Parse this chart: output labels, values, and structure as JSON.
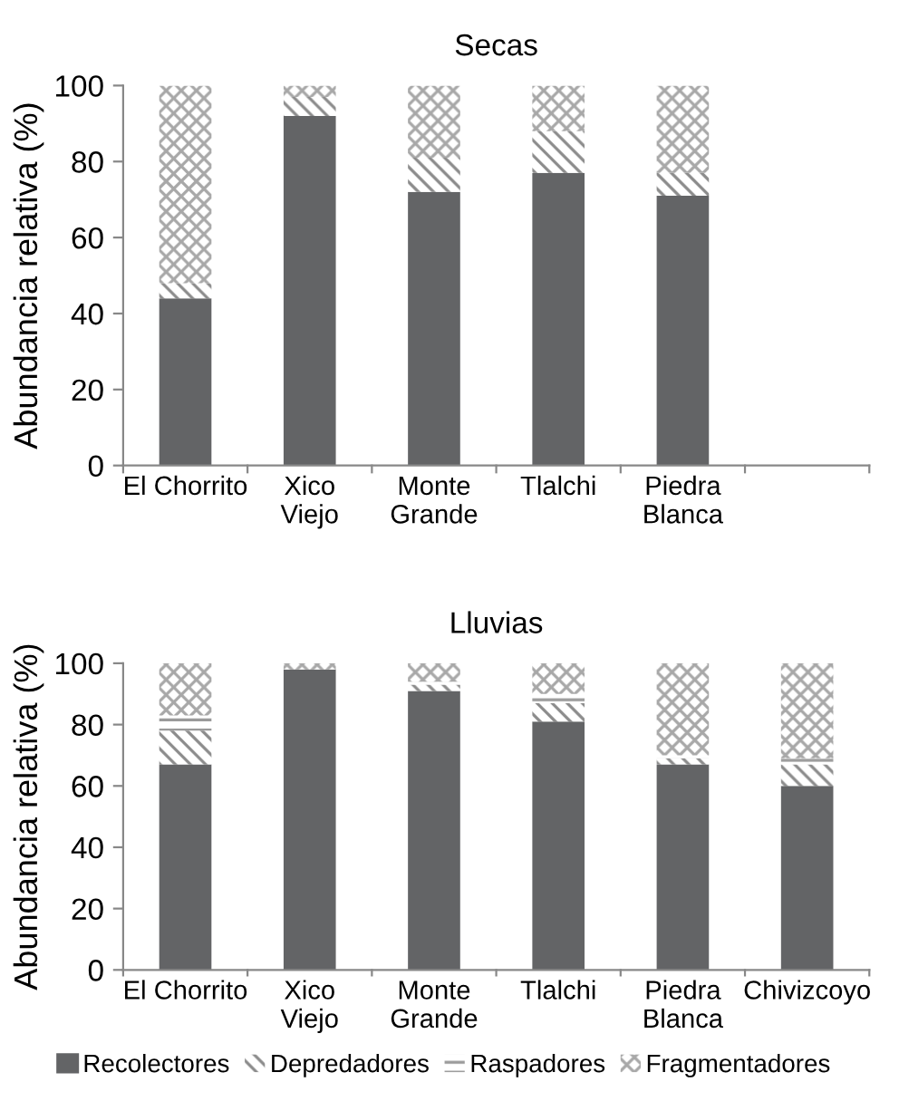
{
  "chart_data": [
    {
      "type": "bar",
      "title": "Secas",
      "ylabel": "Abundancia relativa (%)",
      "stacked": true,
      "grid": false,
      "categories": [
        "El Chorrito",
        "Xico\nViejo",
        "Monte\nGrande",
        "Tlalchi",
        "Piedra\nBlanca",
        null
      ],
      "ylim": [
        0,
        100
      ],
      "yticks": [
        0,
        20,
        40,
        60,
        80,
        100
      ],
      "series": [
        {
          "color": "#636466",
          "values": [
            44,
            92,
            72,
            77,
            71,
            null
          ]
        },
        {
          "color": "#8c8c8c",
          "values": [
            4,
            5,
            9,
            11,
            6,
            null
          ]
        },
        {
          "color": "#9a9a9a",
          "values": [
            0,
            0,
            0,
            0,
            0,
            null
          ]
        },
        {
          "color": "#a8a8a8",
          "values": [
            52,
            3,
            19,
            12,
            23,
            null
          ]
        }
      ]
    },
    {
      "type": "bar",
      "title": "Lluvias",
      "ylabel": "Abundancia relativa (%)",
      "stacked": true,
      "legend": "bottom",
      "grid": false,
      "categories": [
        "El Chorrito",
        "Xico\nViejo",
        "Monte\nGrande",
        "Tlalchi",
        "Piedra\nBlanca",
        "Chivizcoyo"
      ],
      "ylim": [
        0,
        100
      ],
      "yticks": [
        0,
        20,
        40,
        60,
        80,
        100
      ],
      "series": [
        {
          "name": "Recolectores",
          "color": "#636466",
          "values": [
            67,
            98,
            91,
            81,
            67,
            60
          ]
        },
        {
          "name": "Depredadores",
          "color": "#8c8c8c",
          "values": [
            11,
            0,
            2,
            6,
            2,
            7
          ]
        },
        {
          "name": "Raspadores",
          "color": "#9a9a9a",
          "values": [
            5,
            0,
            1,
            3,
            1,
            2
          ]
        },
        {
          "name": "Fragmentadores",
          "color": "#a8a8a8",
          "values": [
            17,
            2,
            6,
            10,
            30,
            31
          ]
        }
      ]
    }
  ]
}
